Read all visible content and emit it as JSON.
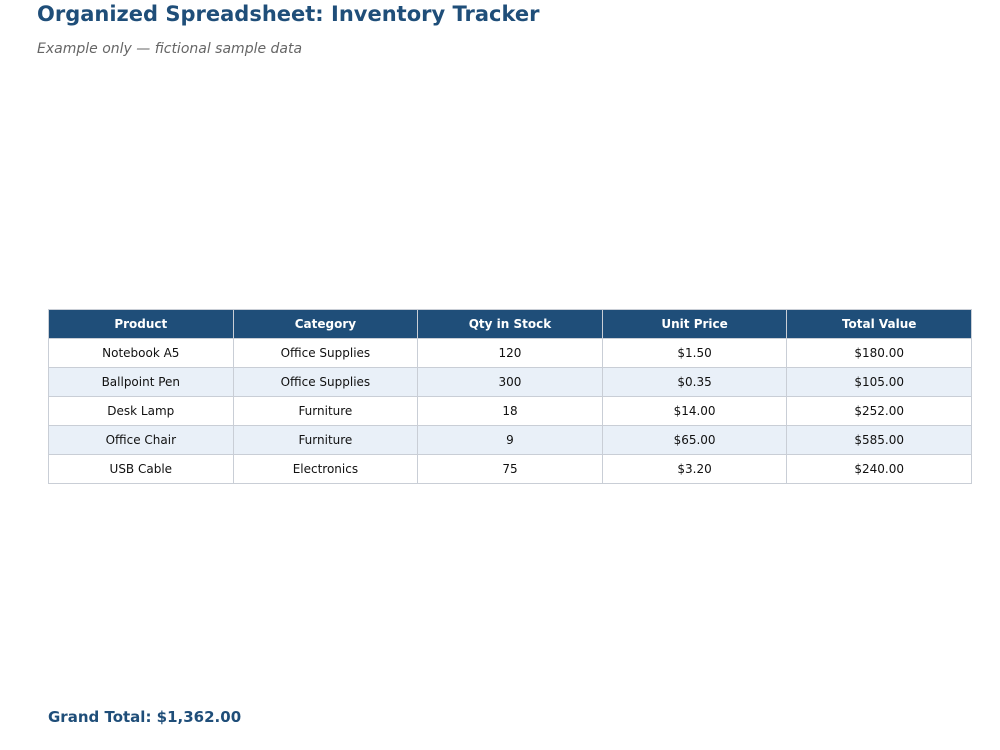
{
  "header": {
    "title": "Organized Spreadsheet: Inventory Tracker",
    "subtitle": "Example only — fictional sample data"
  },
  "table": {
    "columns": [
      "Product",
      "Category",
      "Qty in Stock",
      "Unit Price",
      "Total Value"
    ],
    "rows": [
      [
        "Notebook A5",
        "Office Supplies",
        "120",
        "$1.50",
        "$180.00"
      ],
      [
        "Ballpoint Pen",
        "Office Supplies",
        "300",
        "$0.35",
        "$105.00"
      ],
      [
        "Desk Lamp",
        "Furniture",
        "18",
        "$14.00",
        "$252.00"
      ],
      [
        "Office Chair",
        "Furniture",
        "9",
        "$65.00",
        "$585.00"
      ],
      [
        "USB Cable",
        "Electronics",
        "75",
        "$3.20",
        "$240.00"
      ]
    ]
  },
  "footer": {
    "grand_total": "Grand Total: $1,362.00"
  },
  "colors": {
    "header_bg": "#1f4e79",
    "stripe_bg": "#e9f0f8",
    "border": "#c9ced6"
  }
}
